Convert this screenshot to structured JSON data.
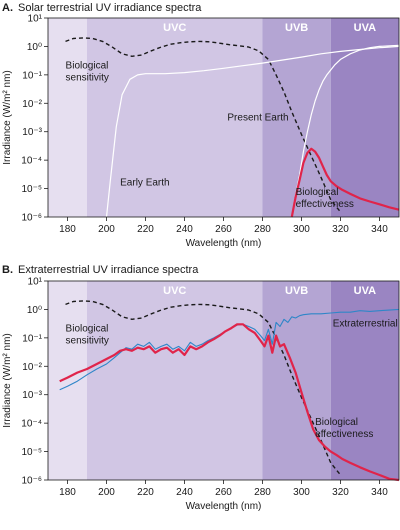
{
  "colors": {
    "region_left": "#e6dff0",
    "band_uvc": "#d1c6e4",
    "band_uvb": "#b4a5d3",
    "band_uva": "#9a85c2",
    "band_label": "#ffffff",
    "sensitivity": "#1a1a1a",
    "effectiveness": "#e0244a",
    "early_earth": "#ffffff",
    "present_earth": "#ffffff",
    "extraterrestrial": "#2f86c8"
  },
  "chart_data": [
    {
      "id": "A",
      "type": "line",
      "panel_label": "A.",
      "title": "Solar terrestrial UV irradiance spectra",
      "xlabel": "Wavelength (nm)",
      "ylabel": "Irradiance (W/m² nm)",
      "xlim": [
        170,
        350
      ],
      "ylim_log10": [
        -6,
        1
      ],
      "x_ticks": [
        180,
        200,
        220,
        240,
        260,
        280,
        300,
        320,
        340
      ],
      "y_tick_labels": [
        "10¹",
        "10⁰",
        "10⁻¹",
        "10⁻²",
        "10⁻³",
        "10⁻⁴",
        "10⁻⁵",
        "10⁻⁶"
      ],
      "bands": [
        {
          "label": "UVC",
          "from": 190,
          "to": 280
        },
        {
          "label": "UVB",
          "from": 280,
          "to": 315
        },
        {
          "label": "UVA",
          "from": 315,
          "to": 350
        }
      ],
      "series": [
        {
          "key": "sensitivity",
          "style": "dashed",
          "x": [
            179,
            183,
            188,
            193,
            198,
            203,
            208,
            213,
            218,
            223,
            228,
            233,
            238,
            243,
            248,
            253,
            258,
            263,
            268,
            273,
            278,
            283,
            287,
            291,
            295,
            300,
            305,
            310,
            315,
            320
          ],
          "y": [
            1.5,
            1.9,
            2.0,
            1.9,
            1.5,
            0.95,
            0.55,
            0.45,
            0.5,
            0.7,
            0.95,
            1.2,
            1.35,
            1.45,
            1.5,
            1.45,
            1.3,
            1.15,
            1.05,
            0.95,
            0.7,
            0.35,
            0.1,
            0.025,
            0.005,
            0.0008,
            0.00014,
            2.5e-05,
            4e-06,
            1.5e-06
          ]
        },
        {
          "key": "early_earth",
          "style": "solid",
          "x": [
            200,
            202,
            205,
            208,
            212,
            216,
            220,
            225,
            230,
            240,
            250,
            260,
            270,
            280,
            290,
            300,
            310,
            320,
            330,
            340,
            350
          ],
          "y": [
            1e-06,
            2e-05,
            0.0015,
            0.02,
            0.07,
            0.1,
            0.11,
            0.11,
            0.11,
            0.12,
            0.14,
            0.17,
            0.21,
            0.26,
            0.33,
            0.42,
            0.55,
            0.67,
            0.78,
            0.9,
            1.0
          ]
        },
        {
          "key": "present_earth",
          "style": "solid",
          "x": [
            295,
            297,
            299,
            301,
            303,
            305,
            307,
            309,
            311,
            313,
            315,
            317,
            320,
            325,
            330,
            335,
            340,
            345,
            350
          ],
          "y": [
            1e-06,
            6e-06,
            3e-05,
            0.0002,
            0.001,
            0.004,
            0.012,
            0.03,
            0.06,
            0.1,
            0.15,
            0.22,
            0.35,
            0.55,
            0.75,
            0.9,
            1.0,
            1.05,
            1.1
          ]
        },
        {
          "key": "effectiveness",
          "style": "solid",
          "x": [
            295,
            297,
            299,
            301,
            303,
            305,
            307,
            309,
            311,
            313,
            315,
            318,
            321,
            325,
            330,
            335,
            340,
            345,
            350
          ],
          "y": [
            1e-06,
            5e-06,
            2e-05,
            8e-05,
            0.00018,
            0.00025,
            0.0002,
            0.00012,
            6e-05,
            3e-05,
            1.8e-05,
            1.2e-05,
            9e-06,
            6.5e-06,
            4.5e-06,
            3.5e-06,
            2.8e-06,
            2.2e-06,
            1.8e-06
          ]
        }
      ],
      "annotations": [
        {
          "lines": [
            "Biological",
            "sensitivity"
          ],
          "x": 179,
          "y": 0.17
        },
        {
          "lines": [
            "Present Earth"
          ],
          "x": 262,
          "y": 0.0025
        },
        {
          "lines": [
            "Early Earth"
          ],
          "x": 207,
          "y": 1.3e-05
        },
        {
          "lines": [
            "Biological",
            "effectiveness"
          ],
          "x": 297,
          "y": 6e-06
        }
      ]
    },
    {
      "id": "B",
      "type": "line",
      "panel_label": "B.",
      "title": "Extraterrestrial UV irradiance spectra",
      "xlabel": "Wavelength (nm)",
      "ylabel": "Irradiance (W/m² nm)",
      "xlim": [
        170,
        350
      ],
      "ylim_log10": [
        -6,
        1
      ],
      "x_ticks": [
        180,
        200,
        220,
        240,
        260,
        280,
        300,
        320,
        340
      ],
      "y_tick_labels": [
        "10¹",
        "10⁰",
        "10⁻¹",
        "10⁻²",
        "10⁻³",
        "10⁻⁴",
        "10⁻⁵",
        "10⁻⁶"
      ],
      "bands": [
        {
          "label": "UVC",
          "from": 190,
          "to": 280
        },
        {
          "label": "UVB",
          "from": 280,
          "to": 315
        },
        {
          "label": "UVA",
          "from": 315,
          "to": 350
        }
      ],
      "series": [
        {
          "key": "sensitivity",
          "style": "dashed",
          "x": [
            179,
            183,
            188,
            193,
            198,
            203,
            208,
            213,
            218,
            223,
            228,
            233,
            238,
            243,
            248,
            253,
            258,
            263,
            268,
            273,
            278,
            283,
            287,
            291,
            295,
            300,
            305,
            310,
            315,
            320
          ],
          "y": [
            1.5,
            1.9,
            2.0,
            1.9,
            1.5,
            0.95,
            0.55,
            0.45,
            0.5,
            0.7,
            0.95,
            1.2,
            1.35,
            1.45,
            1.5,
            1.45,
            1.3,
            1.15,
            1.05,
            0.95,
            0.7,
            0.35,
            0.1,
            0.025,
            0.005,
            0.0008,
            0.00014,
            2.5e-05,
            4e-06,
            1.5e-06
          ]
        },
        {
          "key": "extraterrestrial",
          "style": "solid",
          "x": [
            176,
            180,
            185,
            190,
            195,
            200,
            204,
            207,
            210,
            213,
            216,
            219,
            222,
            225,
            228,
            231,
            234,
            237,
            240,
            243,
            246,
            249,
            252,
            255,
            258,
            261,
            264,
            267,
            270,
            273,
            276,
            279,
            281,
            283,
            285,
            287,
            289,
            291,
            293,
            295,
            297,
            299,
            301,
            305,
            310,
            315,
            320,
            325,
            330,
            335,
            340,
            345,
            350
          ],
          "y": [
            0.0015,
            0.002,
            0.003,
            0.005,
            0.008,
            0.012,
            0.02,
            0.03,
            0.045,
            0.04,
            0.06,
            0.05,
            0.07,
            0.04,
            0.05,
            0.06,
            0.04,
            0.05,
            0.035,
            0.07,
            0.05,
            0.06,
            0.08,
            0.1,
            0.13,
            0.17,
            0.22,
            0.28,
            0.3,
            0.25,
            0.2,
            0.12,
            0.08,
            0.2,
            0.06,
            0.35,
            0.25,
            0.45,
            0.35,
            0.55,
            0.5,
            0.6,
            0.65,
            0.7,
            0.7,
            0.75,
            0.8,
            0.8,
            0.9,
            0.85,
            0.9,
            0.95,
            1.0
          ]
        },
        {
          "key": "effectiveness",
          "style": "solid",
          "x": [
            176,
            180,
            185,
            190,
            195,
            200,
            204,
            207,
            210,
            213,
            216,
            219,
            222,
            225,
            228,
            231,
            234,
            237,
            240,
            243,
            246,
            249,
            252,
            255,
            258,
            261,
            264,
            267,
            270,
            273,
            276,
            279,
            281,
            283,
            285,
            287,
            289,
            291,
            294,
            297,
            300,
            303,
            306,
            309,
            312,
            315,
            318,
            321,
            325,
            330,
            335,
            340,
            345,
            350
          ],
          "y": [
            0.003,
            0.004,
            0.006,
            0.008,
            0.012,
            0.018,
            0.025,
            0.035,
            0.04,
            0.035,
            0.045,
            0.04,
            0.05,
            0.03,
            0.04,
            0.045,
            0.03,
            0.04,
            0.025,
            0.05,
            0.04,
            0.05,
            0.07,
            0.09,
            0.12,
            0.17,
            0.22,
            0.3,
            0.3,
            0.2,
            0.15,
            0.08,
            0.05,
            0.12,
            0.03,
            0.12,
            0.05,
            0.06,
            0.02,
            0.006,
            0.0012,
            0.00025,
            6e-05,
            2.5e-05,
            1.5e-05,
            1e-05,
            7.5e-06,
            5.5e-06,
            4e-06,
            2.8e-06,
            2e-06,
            1.5e-06,
            1.1e-06,
            1e-06
          ]
        }
      ],
      "annotations": [
        {
          "lines": [
            "Biological",
            "sensitivity"
          ],
          "x": 179,
          "y": 0.17
        },
        {
          "lines": [
            "Extraterrestrial"
          ],
          "x": 316,
          "y": 0.25
        },
        {
          "lines": [
            "Biological",
            "effectiveness"
          ],
          "x": 307,
          "y": 8.5e-05
        }
      ]
    }
  ]
}
